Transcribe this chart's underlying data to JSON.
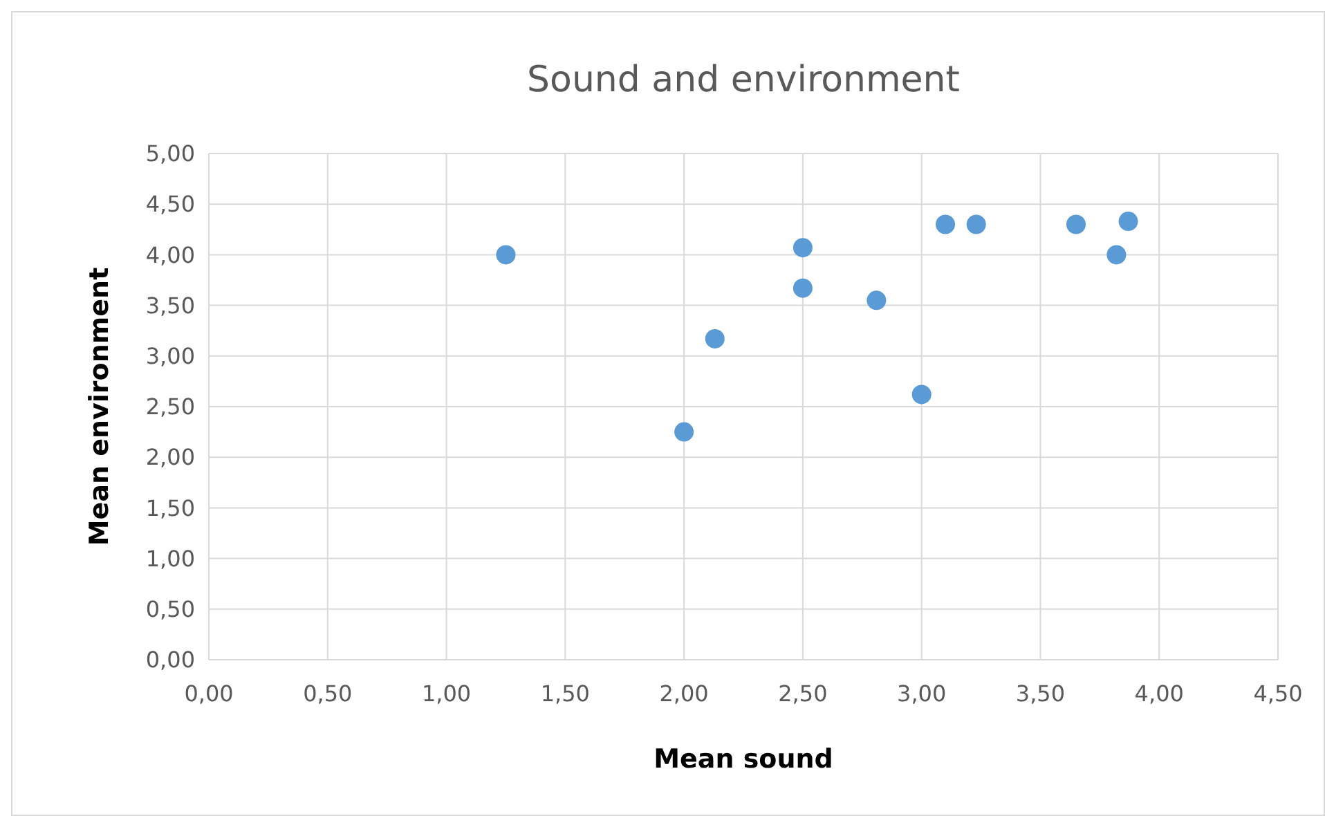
{
  "chart_data": {
    "type": "scatter",
    "title": "Sound and environment",
    "xlabel": "Mean sound",
    "ylabel": "Mean environment",
    "x": [
      1.25,
      2.0,
      2.13,
      2.5,
      2.5,
      2.81,
      3.0,
      3.1,
      3.23,
      3.65,
      3.82,
      3.87
    ],
    "series": [
      {
        "color": "#5b9bd5",
        "values": [
          4.0,
          2.25,
          3.17,
          4.07,
          3.67,
          3.55,
          2.62,
          4.3,
          4.3,
          4.3,
          4.0,
          4.33
        ]
      }
    ],
    "xlim": [
      0,
      4.5
    ],
    "ylim": [
      0,
      5
    ],
    "xticks": [
      {
        "value": 0,
        "label": "0,00"
      },
      {
        "value": 0.5,
        "label": "0,50"
      },
      {
        "value": 1,
        "label": "1,00"
      },
      {
        "value": 1.5,
        "label": "1,50"
      },
      {
        "value": 2,
        "label": "2,00"
      },
      {
        "value": 2.5,
        "label": "2,50"
      },
      {
        "value": 3,
        "label": "3,00"
      },
      {
        "value": 3.5,
        "label": "3,50"
      },
      {
        "value": 4,
        "label": "4,00"
      },
      {
        "value": 4.5,
        "label": "4,50"
      }
    ],
    "yticks": [
      {
        "value": 0,
        "label": "0,00"
      },
      {
        "value": 0.5,
        "label": "0,50"
      },
      {
        "value": 1,
        "label": "1,00"
      },
      {
        "value": 1.5,
        "label": "1,50"
      },
      {
        "value": 2,
        "label": "2,00"
      },
      {
        "value": 2.5,
        "label": "2,50"
      },
      {
        "value": 3,
        "label": "3,00"
      },
      {
        "value": 3.5,
        "label": "3,50"
      },
      {
        "value": 4,
        "label": "4,00"
      },
      {
        "value": 4.5,
        "label": "4,50"
      },
      {
        "value": 5,
        "label": "5,00"
      }
    ],
    "grid": true,
    "marker": "circle"
  }
}
